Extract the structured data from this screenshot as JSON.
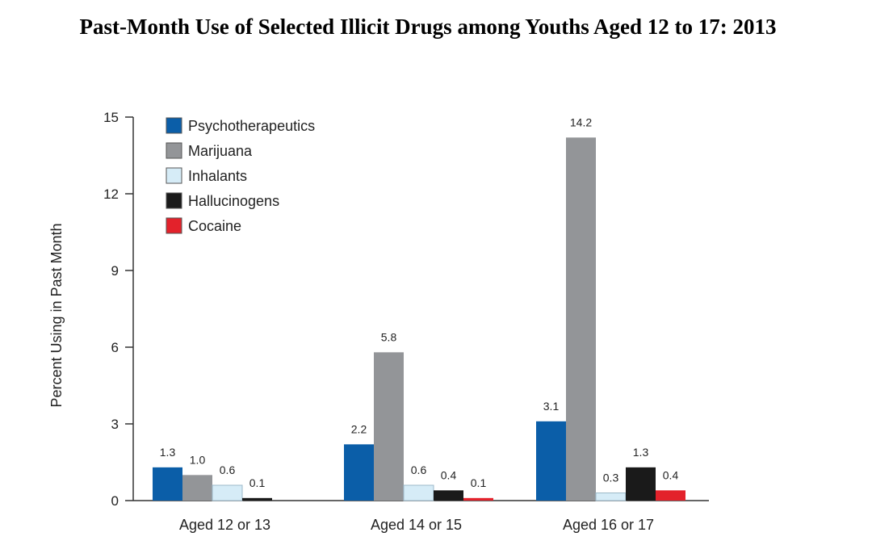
{
  "chart_data": {
    "type": "bar",
    "title": "Past-Month Use of Selected Illicit Drugs among Youths Aged 12 to 17: 2013",
    "xlabel": "",
    "ylabel": "Percent Using in Past Month",
    "ylim": [
      0,
      15
    ],
    "yticks": [
      "0",
      "3",
      "6",
      "9",
      "12",
      "15"
    ],
    "grid": false,
    "legend_position": "top-left",
    "categories": [
      "Aged 12 or 13",
      "Aged 14 or 15",
      "Aged 16 or 17"
    ],
    "series": [
      {
        "name": "Psychotherapeutics",
        "color": "#0b5ea8",
        "values": [
          1.3,
          2.2,
          3.1
        ],
        "labels": [
          "1.3",
          "2.2",
          "3.1"
        ]
      },
      {
        "name": "Marijuana",
        "color": "#939598",
        "values": [
          1.0,
          5.8,
          14.2
        ],
        "labels": [
          "1.0",
          "5.8",
          "14.2"
        ]
      },
      {
        "name": "Inhalants",
        "color": "#d6ecf7",
        "values": [
          0.6,
          0.6,
          0.3
        ],
        "labels": [
          "0.6",
          "0.6",
          "0.3"
        ]
      },
      {
        "name": "Hallucinogens",
        "color": "#1a1a1a",
        "values": [
          0.1,
          0.4,
          1.3
        ],
        "labels": [
          "0.1",
          "0.4",
          "1.3"
        ]
      },
      {
        "name": "Cocaine",
        "color": "#e3222b",
        "values": [
          0.0,
          0.1,
          0.4
        ],
        "labels": [
          "",
          "0.1",
          "0.4"
        ]
      }
    ]
  }
}
